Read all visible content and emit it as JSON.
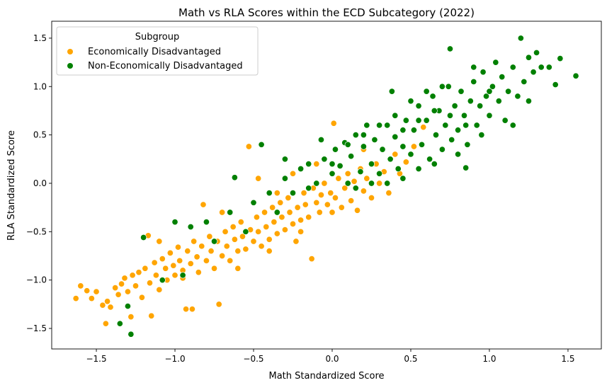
{
  "chart_data": {
    "type": "scatter",
    "title": "Math vs RLA Scores within the ECD Subcategory (2022)",
    "xlabel": "Math Standardized Score",
    "ylabel": "RLA Standardized Score",
    "xlim": [
      -1.784,
      1.712
    ],
    "ylim": [
      -1.712,
      1.675
    ],
    "xticks": [
      -1.5,
      -1.0,
      -0.5,
      0.0,
      0.5,
      1.0,
      1.5
    ],
    "xtick_labels": [
      "−1.5",
      "−1.0",
      "−0.5",
      "0.0",
      "0.5",
      "1.0",
      "1.5"
    ],
    "yticks": [
      -1.5,
      -1.0,
      -0.5,
      0.0,
      0.5,
      1.0,
      1.5
    ],
    "ytick_labels": [
      "−1.5",
      "−1.0",
      "−0.5",
      "0.0",
      "0.5",
      "1.0",
      "1.5"
    ],
    "grid": false,
    "legend": {
      "title": "Subgroup",
      "placement": "top-left"
    },
    "series": [
      {
        "name": "Economically Disadvantaged",
        "color": "#ffa500",
        "points": [
          [
            -1.63,
            -1.19
          ],
          [
            -1.6,
            -1.06
          ],
          [
            -1.56,
            -1.11
          ],
          [
            -1.53,
            -1.19
          ],
          [
            -1.5,
            -1.12
          ],
          [
            -1.46,
            -1.26
          ],
          [
            -1.44,
            -1.45
          ],
          [
            -1.43,
            -1.22
          ],
          [
            -1.41,
            -1.28
          ],
          [
            -1.38,
            -1.08
          ],
          [
            -1.36,
            -1.15
          ],
          [
            -1.34,
            -1.04
          ],
          [
            -1.32,
            -0.98
          ],
          [
            -1.3,
            -1.12
          ],
          [
            -1.28,
            -1.38
          ],
          [
            -1.27,
            -0.95
          ],
          [
            -1.25,
            -1.06
          ],
          [
            -1.23,
            -0.92
          ],
          [
            -1.21,
            -1.18
          ],
          [
            -1.19,
            -0.88
          ],
          [
            -1.17,
            -0.54
          ],
          [
            -1.16,
            -1.03
          ],
          [
            -1.15,
            -1.37
          ],
          [
            -1.13,
            -0.82
          ],
          [
            -1.12,
            -0.95
          ],
          [
            -1.1,
            -1.1
          ],
          [
            -1.08,
            -0.78
          ],
          [
            -1.06,
            -0.88
          ],
          [
            -1.05,
            -1.0
          ],
          [
            -1.03,
            -0.72
          ],
          [
            -1.01,
            -0.85
          ],
          [
            -1.0,
            -0.95
          ],
          [
            -0.98,
            -0.66
          ],
          [
            -0.97,
            -0.8
          ],
          [
            -0.95,
            -0.9
          ],
          [
            -0.93,
            -1.3
          ],
          [
            -0.92,
            -0.7
          ],
          [
            -0.9,
            -0.83
          ],
          [
            -0.89,
            -1.3
          ],
          [
            -0.88,
            -0.6
          ],
          [
            -0.86,
            -0.76
          ],
          [
            -0.85,
            -0.92
          ],
          [
            -0.83,
            -0.65
          ],
          [
            -0.82,
            -0.22
          ],
          [
            -0.8,
            -0.8
          ],
          [
            -0.78,
            -0.55
          ],
          [
            -0.77,
            -0.7
          ],
          [
            -0.75,
            -0.88
          ],
          [
            -0.73,
            -0.6
          ],
          [
            -0.72,
            -1.25
          ],
          [
            -0.7,
            -0.75
          ],
          [
            -0.68,
            -0.5
          ],
          [
            -0.67,
            -0.65
          ],
          [
            -0.65,
            -0.8
          ],
          [
            -0.63,
            -0.45
          ],
          [
            -0.62,
            -0.58
          ],
          [
            -0.6,
            -0.7
          ],
          [
            -0.58,
            -0.4
          ],
          [
            -0.57,
            -0.55
          ],
          [
            -0.55,
            -0.68
          ],
          [
            -0.53,
            0.38
          ],
          [
            -0.52,
            -0.48
          ],
          [
            -0.5,
            -0.6
          ],
          [
            -0.48,
            -0.35
          ],
          [
            -0.47,
            -0.5
          ],
          [
            -0.45,
            -0.65
          ],
          [
            -0.43,
            -0.3
          ],
          [
            -0.42,
            -0.45
          ],
          [
            -0.4,
            -0.58
          ],
          [
            -0.38,
            -0.25
          ],
          [
            -0.37,
            -0.4
          ],
          [
            -0.35,
            -0.52
          ],
          [
            -0.33,
            -0.2
          ],
          [
            -0.32,
            -0.35
          ],
          [
            -0.3,
            -0.48
          ],
          [
            -0.28,
            -0.15
          ],
          [
            -0.27,
            -0.3
          ],
          [
            -0.25,
            -0.42
          ],
          [
            -0.23,
            -0.6
          ],
          [
            -0.22,
            -0.25
          ],
          [
            -0.2,
            -0.38
          ],
          [
            -0.18,
            -0.1
          ],
          [
            -0.17,
            -0.22
          ],
          [
            -0.15,
            -0.35
          ],
          [
            -0.13,
            -0.78
          ],
          [
            -0.12,
            -0.05
          ],
          [
            -0.1,
            -0.2
          ],
          [
            -0.08,
            -0.3
          ],
          [
            -0.07,
            -0.12
          ],
          [
            -0.05,
            0.0
          ],
          [
            -0.03,
            -0.22
          ],
          [
            -0.01,
            -0.1
          ],
          [
            0.01,
            0.62
          ],
          [
            0.02,
            -0.15
          ],
          [
            0.04,
            0.05
          ],
          [
            0.06,
            -0.25
          ],
          [
            0.08,
            -0.05
          ],
          [
            0.1,
            0.1
          ],
          [
            0.12,
            -0.18
          ],
          [
            0.14,
            0.02
          ],
          [
            0.16,
            -0.28
          ],
          [
            0.18,
            0.15
          ],
          [
            0.2,
            -0.08
          ],
          [
            0.22,
            0.05
          ],
          [
            0.25,
            -0.15
          ],
          [
            0.28,
            0.2
          ],
          [
            0.3,
            0.0
          ],
          [
            0.33,
            0.12
          ],
          [
            0.36,
            -0.1
          ],
          [
            0.4,
            0.3
          ],
          [
            0.43,
            0.1
          ],
          [
            0.47,
            0.22
          ],
          [
            0.52,
            0.38
          ],
          [
            0.58,
            0.58
          ],
          [
            -0.95,
            -0.98
          ],
          [
            -0.6,
            -0.88
          ],
          [
            -0.4,
            -0.7
          ],
          [
            -0.2,
            -0.5
          ],
          [
            0.0,
            -0.3
          ],
          [
            -1.1,
            -0.6
          ],
          [
            -0.7,
            -0.3
          ],
          [
            -0.35,
            -0.1
          ],
          [
            -0.1,
            0.2
          ],
          [
            0.2,
            0.35
          ],
          [
            -0.47,
            0.05
          ],
          [
            -0.25,
            0.1
          ]
        ]
      },
      {
        "name": "Non-Economically Disadvantaged",
        "color": "#008000",
        "points": [
          [
            -1.35,
            -1.45
          ],
          [
            -1.3,
            -1.27
          ],
          [
            -1.28,
            -1.56
          ],
          [
            -1.2,
            -0.56
          ],
          [
            -1.08,
            -1.0
          ],
          [
            -1.0,
            -0.4
          ],
          [
            -0.95,
            -0.95
          ],
          [
            -0.9,
            -0.45
          ],
          [
            -0.8,
            -0.4
          ],
          [
            -0.75,
            -0.6
          ],
          [
            -0.65,
            -0.3
          ],
          [
            -0.62,
            0.06
          ],
          [
            -0.55,
            -0.5
          ],
          [
            -0.5,
            -0.2
          ],
          [
            -0.45,
            0.4
          ],
          [
            -0.4,
            -0.1
          ],
          [
            -0.35,
            -0.3
          ],
          [
            -0.3,
            0.05
          ],
          [
            -0.25,
            -0.1
          ],
          [
            -0.2,
            0.15
          ],
          [
            -0.15,
            0.2
          ],
          [
            -0.1,
            0.0
          ],
          [
            -0.07,
            0.45
          ],
          [
            -0.05,
            0.25
          ],
          [
            0.0,
            0.1
          ],
          [
            0.02,
            0.35
          ],
          [
            0.05,
            0.18
          ],
          [
            0.08,
            0.42
          ],
          [
            0.1,
            0.0
          ],
          [
            0.12,
            0.28
          ],
          [
            0.15,
            0.5
          ],
          [
            0.18,
            0.12
          ],
          [
            0.2,
            0.38
          ],
          [
            0.22,
            0.6
          ],
          [
            0.25,
            0.2
          ],
          [
            0.27,
            0.45
          ],
          [
            0.3,
            0.1
          ],
          [
            0.32,
            0.35
          ],
          [
            0.35,
            0.6
          ],
          [
            0.37,
            0.25
          ],
          [
            0.38,
            0.95
          ],
          [
            0.4,
            0.48
          ],
          [
            0.42,
            0.15
          ],
          [
            0.45,
            0.38
          ],
          [
            0.47,
            0.65
          ],
          [
            0.5,
            0.3
          ],
          [
            0.52,
            0.55
          ],
          [
            0.55,
            0.8
          ],
          [
            0.57,
            0.4
          ],
          [
            0.6,
            0.65
          ],
          [
            0.62,
            0.25
          ],
          [
            0.64,
            0.9
          ],
          [
            0.66,
            0.5
          ],
          [
            0.68,
            0.75
          ],
          [
            0.7,
            0.35
          ],
          [
            0.72,
            0.6
          ],
          [
            0.74,
            1.0
          ],
          [
            0.75,
            1.39
          ],
          [
            0.76,
            0.45
          ],
          [
            0.78,
            0.8
          ],
          [
            0.8,
            0.55
          ],
          [
            0.82,
            0.95
          ],
          [
            0.84,
            0.7
          ],
          [
            0.85,
            0.16
          ],
          [
            0.86,
            0.4
          ],
          [
            0.88,
            0.85
          ],
          [
            0.9,
            1.05
          ],
          [
            0.92,
            0.6
          ],
          [
            0.94,
            0.8
          ],
          [
            0.96,
            1.15
          ],
          [
            0.98,
            0.9
          ],
          [
            1.0,
            0.7
          ],
          [
            1.02,
            1.0
          ],
          [
            1.04,
            1.25
          ],
          [
            1.06,
            0.85
          ],
          [
            1.08,
            1.1
          ],
          [
            1.1,
            0.65
          ],
          [
            1.12,
            0.95
          ],
          [
            1.15,
            1.2
          ],
          [
            1.18,
            0.9
          ],
          [
            1.2,
            1.5
          ],
          [
            1.22,
            1.05
          ],
          [
            1.25,
            1.3
          ],
          [
            1.28,
            1.15
          ],
          [
            1.3,
            1.35
          ],
          [
            1.33,
            1.2
          ],
          [
            1.38,
            1.2
          ],
          [
            1.42,
            1.02
          ],
          [
            1.45,
            1.29
          ],
          [
            1.55,
            1.11
          ],
          [
            1.0,
            0.95
          ],
          [
            0.95,
            0.5
          ],
          [
            0.6,
            0.95
          ],
          [
            0.5,
            0.85
          ],
          [
            0.4,
            0.7
          ],
          [
            0.3,
            0.6
          ],
          [
            0.2,
            0.5
          ],
          [
            0.1,
            0.4
          ],
          [
            0.0,
            0.2
          ],
          [
            0.55,
            0.15
          ],
          [
            0.45,
            0.05
          ],
          [
            0.35,
            0.0
          ],
          [
            0.65,
            0.2
          ],
          [
            0.8,
            0.3
          ],
          [
            1.15,
            0.6
          ],
          [
            1.25,
            0.85
          ],
          [
            0.9,
            1.2
          ],
          [
            0.7,
            1.0
          ],
          [
            -0.3,
            0.25
          ],
          [
            -0.15,
            -0.05
          ],
          [
            0.15,
            -0.05
          ],
          [
            0.25,
            0.0
          ],
          [
            0.85,
            0.6
          ],
          [
            0.75,
            0.7
          ],
          [
            0.65,
            0.75
          ],
          [
            0.55,
            0.65
          ],
          [
            0.45,
            0.55
          ]
        ]
      }
    ]
  }
}
